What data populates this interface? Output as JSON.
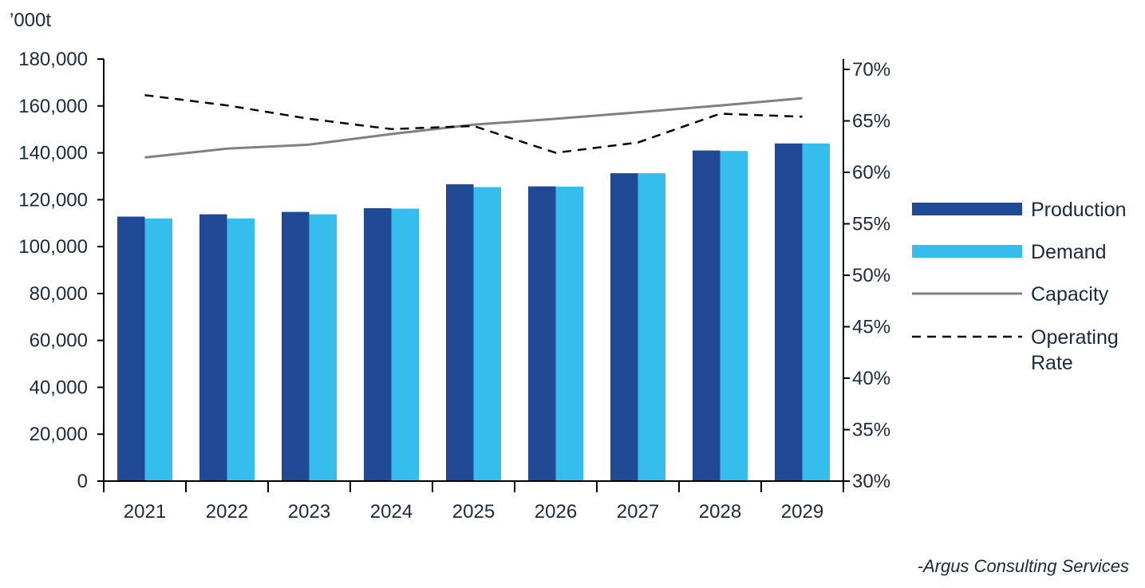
{
  "chart_data": {
    "type": "bar",
    "unit_label": "’000t",
    "source": "-Argus Consulting Services",
    "categories": [
      "2021",
      "2022",
      "2023",
      "2024",
      "2025",
      "2026",
      "2027",
      "2028",
      "2029"
    ],
    "y_left": {
      "min": 0,
      "max": 180000,
      "step": 20000,
      "tick_labels": [
        "0",
        "20,000",
        "40,000",
        "60,000",
        "80,000",
        "100,000",
        "120,000",
        "140,000",
        "160,000",
        "180,000"
      ]
    },
    "y_right": {
      "min": 0.3,
      "max": 0.7,
      "step": 0.05,
      "tick_labels": [
        "30%",
        "35%",
        "40%",
        "45%",
        "50%",
        "55%",
        "60%",
        "65%",
        "70%"
      ]
    },
    "series": [
      {
        "name": "Production",
        "kind": "bar",
        "axis": "left",
        "color": "#214a96",
        "values": [
          112800,
          113800,
          114800,
          116400,
          126600,
          125700,
          131300,
          141000,
          144000
        ]
      },
      {
        "name": "Demand",
        "kind": "bar",
        "axis": "left",
        "color": "#35bdee",
        "values": [
          112000,
          112000,
          113800,
          116200,
          125400,
          125600,
          131300,
          140800,
          144000
        ]
      },
      {
        "name": "Capacity",
        "kind": "line",
        "axis": "left",
        "color": "#808080",
        "values": [
          138000,
          141800,
          143500,
          148000,
          152000,
          154500,
          157300,
          160200,
          163300
        ]
      },
      {
        "name": "Operating Rate",
        "kind": "dashed-line",
        "axis": "right",
        "color": "#000000",
        "values": [
          0.675,
          0.665,
          0.652,
          0.642,
          0.645,
          0.619,
          0.629,
          0.657,
          0.654
        ]
      }
    ],
    "legend": {
      "position": "right",
      "items": [
        {
          "label_lines": [
            "Production"
          ],
          "symbol": "bar",
          "color": "#214a96"
        },
        {
          "label_lines": [
            "Demand"
          ],
          "symbol": "bar",
          "color": "#35bdee"
        },
        {
          "label_lines": [
            "Capacity"
          ],
          "symbol": "line",
          "color": "#808080"
        },
        {
          "label_lines": [
            "Operating",
            "Rate"
          ],
          "symbol": "dashed-line",
          "color": "#000000"
        }
      ]
    }
  }
}
